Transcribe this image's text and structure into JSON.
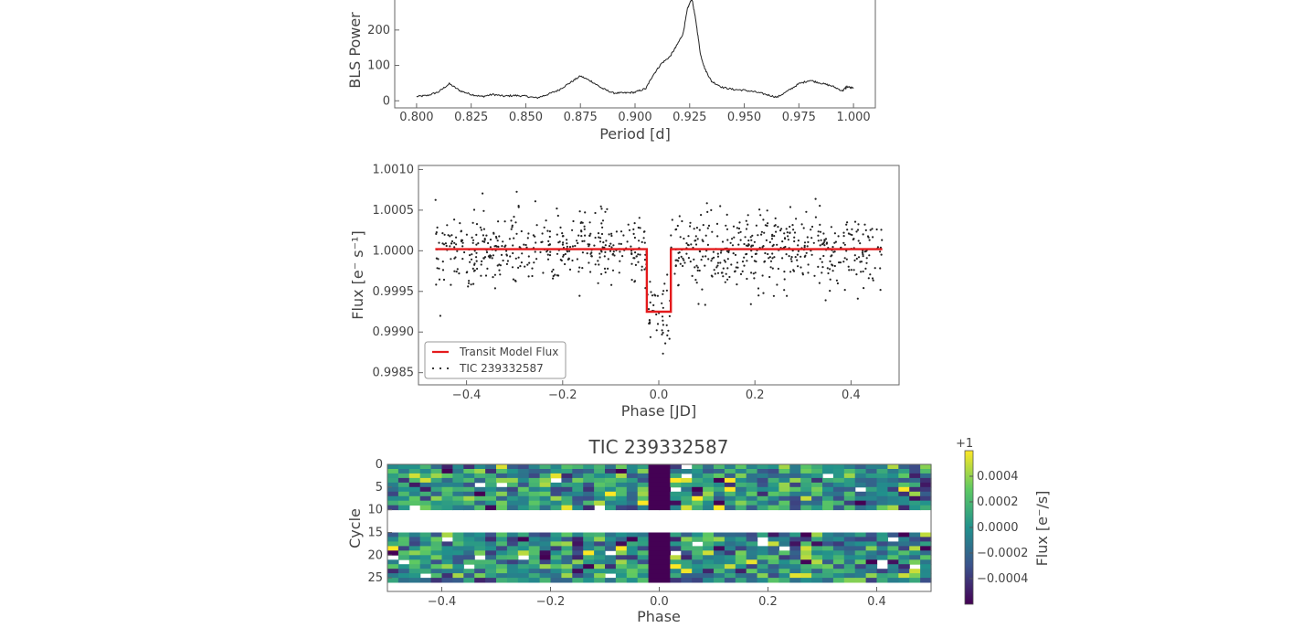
{
  "chart_data": [
    {
      "type": "line",
      "name": "bls-periodogram",
      "xlabel": "Period [d]",
      "ylabel": "BLS Power",
      "xlim": [
        0.79,
        1.01
      ],
      "ylim": [
        -20,
        290
      ],
      "xticks": [
        0.8,
        0.825,
        0.85,
        0.875,
        0.9,
        0.925,
        0.95,
        0.975,
        1.0
      ],
      "xtick_labels": [
        "0.800",
        "0.825",
        "0.850",
        "0.875",
        "0.900",
        "0.925",
        "0.950",
        "0.975",
        "1.000"
      ],
      "yticks": [
        0,
        100,
        200
      ],
      "ytick_labels": [
        "0",
        "100",
        "200"
      ],
      "series": [
        {
          "x": [
            0.8,
            0.805,
            0.81,
            0.815,
            0.82,
            0.825,
            0.83,
            0.835,
            0.84,
            0.845,
            0.85,
            0.855,
            0.86,
            0.865,
            0.87,
            0.875,
            0.88,
            0.885,
            0.89,
            0.895,
            0.9,
            0.905,
            0.908,
            0.912,
            0.916,
            0.919,
            0.922,
            0.924,
            0.926,
            0.928,
            0.93,
            0.932,
            0.935,
            0.94,
            0.945,
            0.95,
            0.955,
            0.96,
            0.965,
            0.97,
            0.975,
            0.98,
            0.985,
            0.99,
            0.995,
            0.997,
            1.0
          ],
          "y": [
            12,
            15,
            25,
            48,
            28,
            18,
            12,
            18,
            13,
            15,
            13,
            8,
            18,
            30,
            50,
            70,
            55,
            35,
            22,
            22,
            24,
            35,
            70,
            105,
            125,
            155,
            190,
            260,
            290,
            220,
            130,
            90,
            55,
            38,
            32,
            30,
            25,
            18,
            10,
            28,
            48,
            58,
            50,
            42,
            28,
            40,
            35
          ]
        }
      ]
    },
    {
      "type": "scatter",
      "name": "folded-light-curve",
      "xlabel": "Phase [JD]",
      "ylabel": "Flux [e⁻ s⁻¹]",
      "xlim": [
        -0.5,
        0.5
      ],
      "ylim": [
        0.99835,
        1.00105
      ],
      "xticks": [
        -0.4,
        -0.2,
        0.0,
        0.2,
        0.4
      ],
      "xtick_labels": [
        "−0.4",
        "−0.2",
        "0.0",
        "0.2",
        "0.4"
      ],
      "yticks": [
        0.9985,
        0.999,
        0.9995,
        1.0,
        1.0005,
        1.001
      ],
      "ytick_labels": [
        "0.9985",
        "0.9990",
        "0.9995",
        "1.0000",
        "1.0005",
        "1.0010"
      ],
      "legend": [
        {
          "label": "Transit Model Flux",
          "color": "#e41a1c",
          "style": "line"
        },
        {
          "label": "TIC 239332587",
          "color": "#222222",
          "style": "dots"
        }
      ],
      "legend_position": "lower-left",
      "model": {
        "x": [
          -0.465,
          -0.025,
          -0.025,
          0.025,
          0.025,
          0.465
        ],
        "y": [
          1.00002,
          1.00002,
          0.99925,
          0.99925,
          1.00002,
          1.00002
        ]
      },
      "points": {
        "n": 900,
        "phase_range": [
          -0.465,
          0.465
        ],
        "baseline_flux": 1.0,
        "scatter_sigma": 0.00023,
        "transit_depth": 0.00085,
        "transit_halfwidth": 0.025
      }
    },
    {
      "type": "heatmap",
      "name": "river-plot",
      "title": "TIC 239332587",
      "xlabel": "Phase",
      "ylabel": "Cycle",
      "xlim": [
        -0.5,
        0.5
      ],
      "ylim": [
        28,
        0
      ],
      "xticks": [
        -0.4,
        -0.2,
        0.0,
        0.2,
        0.4
      ],
      "xtick_labels": [
        "−0.4",
        "−0.2",
        "0.0",
        "0.2",
        "0.4"
      ],
      "yticks": [
        0,
        5,
        10,
        15,
        20,
        25
      ],
      "ytick_labels": [
        "0",
        "5",
        "10",
        "15",
        "20",
        "25"
      ],
      "n_phase_bins": 50,
      "n_cycles": 28,
      "cycle_rows_with_data": [
        [
          0,
          9
        ],
        [
          15,
          25
        ]
      ],
      "transit_bins_dark": [
        -0.02,
        0.02
      ],
      "colorbar": {
        "label": "Flux [e⁻/s]",
        "offset_label": "+1",
        "range": [
          -0.0006,
          0.0006
        ],
        "ticks": [
          -0.0004,
          -0.0002,
          0.0,
          0.0002,
          0.0004
        ],
        "tick_labels": [
          "−0.0004",
          "−0.0002",
          "0.0000",
          "0.0002",
          "0.0004"
        ],
        "colormap": [
          "#440154",
          "#3b528b",
          "#21918c",
          "#5ec962",
          "#fde725"
        ]
      }
    }
  ]
}
